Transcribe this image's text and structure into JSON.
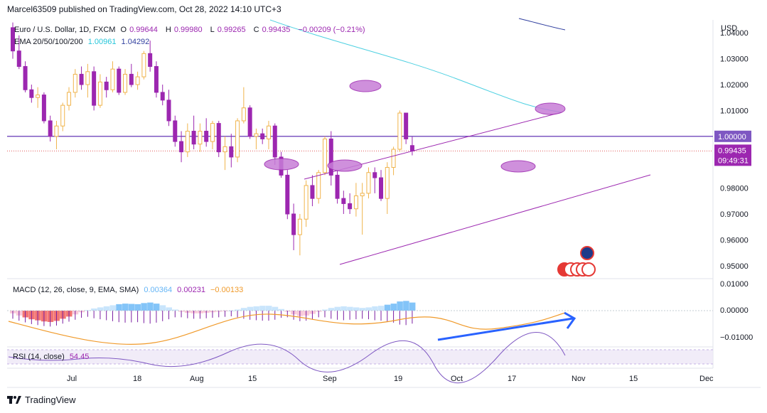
{
  "header": {
    "publisher": "Marcel63509 published on TradingView.com, Oct 28, 2022 14:10 UTC+3"
  },
  "legend": {
    "symbol": "Euro / U.S. Dollar, 1D, FXCM",
    "o_label": "O",
    "o_value": "0.99644",
    "h_label": "H",
    "h_value": "0.99980",
    "l_label": "L",
    "l_value": "0.99265",
    "c_label": "C",
    "c_value": "0.99435",
    "change": "−0.00209 (−0.21%)",
    "ema_label": "EMA 20/50/100/200",
    "ema_value_1": "1.00961",
    "ema_value_2": "1.04292"
  },
  "macd_legend": {
    "label": "MACD (12, 26, close, 9, EMA, SMA)",
    "v1": "0.00364",
    "v2": "0.00231",
    "v3": "−0.00133"
  },
  "rsi_legend": {
    "label": "RSI (14, close)",
    "value": "54.45"
  },
  "price_axis": {
    "currency": "USD",
    "ticks": [
      "1.04000",
      "1.03000",
      "1.02000",
      "1.01000",
      "1.00000",
      "0.99435",
      "0.98000",
      "0.97000",
      "0.96000",
      "0.95000"
    ],
    "countdown": "09:49:31",
    "macd_ticks": [
      "0.01000",
      "0.00000",
      "−0.01000"
    ]
  },
  "time_axis": {
    "labels": [
      "Jul",
      "18",
      "Aug",
      "15",
      "Sep",
      "19",
      "Oct",
      "17",
      "Nov",
      "15",
      "Dec"
    ]
  },
  "footer": {
    "brand": "TradingView"
  },
  "colors": {
    "up": "#f0b44c",
    "down": "#9c27b0",
    "ema_cyan": "#4dd0e1",
    "ema_navy": "#303f9f",
    "level": "#7e57c2",
    "ellipse": "#c77dd7",
    "blue_arrow": "#2962ff"
  },
  "chart_data": {
    "type": "candlestick",
    "symbol": "EURUSD",
    "timeframe": "1D",
    "ylim": [
      0.945,
      1.045
    ],
    "level_line": 1.0,
    "last_close": 0.99435,
    "x_labels": [
      "Jul",
      "18",
      "Aug",
      "15",
      "Sep",
      "19",
      "Oct",
      "17",
      "Nov",
      "15",
      "Dec"
    ],
    "ohlc": [
      [
        1.042,
        1.044,
        1.03,
        1.033
      ],
      [
        1.033,
        1.039,
        1.026,
        1.027
      ],
      [
        1.027,
        1.029,
        1.017,
        1.018
      ],
      [
        1.018,
        1.02,
        1.013,
        1.015
      ],
      [
        1.015,
        1.019,
        1.011,
        1.016
      ],
      [
        1.016,
        1.017,
        1.005,
        1.006
      ],
      [
        1.006,
        1.008,
        0.998,
        1.0
      ],
      [
        1.0,
        1.006,
        0.995,
        1.004
      ],
      [
        1.004,
        1.013,
        1.002,
        1.012
      ],
      [
        1.012,
        1.019,
        1.01,
        1.017
      ],
      [
        1.017,
        1.026,
        1.015,
        1.024
      ],
      [
        1.024,
        1.027,
        1.018,
        1.02
      ],
      [
        1.02,
        1.028,
        1.015,
        1.025
      ],
      [
        1.025,
        1.027,
        1.01,
        1.012
      ],
      [
        1.012,
        1.024,
        1.011,
        1.021
      ],
      [
        1.021,
        1.023,
        1.015,
        1.018
      ],
      [
        1.018,
        1.029,
        1.017,
        1.026
      ],
      [
        1.026,
        1.027,
        1.016,
        1.017
      ],
      [
        1.017,
        1.026,
        1.016,
        1.024
      ],
      [
        1.024,
        1.028,
        1.019,
        1.02
      ],
      [
        1.02,
        1.025,
        1.018,
        1.023
      ],
      [
        1.023,
        1.033,
        1.022,
        1.032
      ],
      [
        1.032,
        1.037,
        1.025,
        1.027
      ],
      [
        1.027,
        1.029,
        1.015,
        1.017
      ],
      [
        1.017,
        1.02,
        1.012,
        1.014
      ],
      [
        1.014,
        1.018,
        1.004,
        1.006
      ],
      [
        1.006,
        1.008,
        0.996,
        0.998
      ],
      [
        0.998,
        1.002,
        0.99,
        0.994
      ],
      [
        0.994,
        1.005,
        0.992,
        1.002
      ],
      [
        1.002,
        1.008,
        0.995,
        0.997
      ],
      [
        0.997,
        1.005,
        0.994,
        1.002
      ],
      [
        1.002,
        1.007,
        0.996,
        0.998
      ],
      [
        0.998,
        1.006,
        0.995,
        1.005
      ],
      [
        1.005,
        1.006,
        0.992,
        0.994
      ],
      [
        0.994,
        1.0,
        0.987,
        0.996
      ],
      [
        0.996,
        1.001,
        0.988,
        0.992
      ],
      [
        0.992,
        1.007,
        0.99,
        1.006
      ],
      [
        1.006,
        1.019,
        1.005,
        1.011
      ],
      [
        1.011,
        1.012,
        0.999,
        1.0
      ],
      [
        1.0,
        1.003,
        0.995,
        1.001
      ],
      [
        1.001,
        1.003,
        0.997,
        0.999
      ],
      [
        0.999,
        1.006,
        0.995,
        1.004
      ],
      [
        1.004,
        1.005,
        0.989,
        0.992
      ],
      [
        0.992,
        0.994,
        0.984,
        0.985
      ],
      [
        0.985,
        0.987,
        0.968,
        0.97
      ],
      [
        0.97,
        0.974,
        0.956,
        0.962
      ],
      [
        0.962,
        0.97,
        0.954,
        0.968
      ],
      [
        0.968,
        0.983,
        0.965,
        0.981
      ],
      [
        0.981,
        0.985,
        0.973,
        0.976
      ],
      [
        0.976,
        0.987,
        0.974,
        0.986
      ],
      [
        0.986,
        1.0,
        0.985,
        0.999
      ],
      [
        0.999,
        1.002,
        0.981,
        0.985
      ],
      [
        0.985,
        0.987,
        0.974,
        0.976
      ],
      [
        0.976,
        0.979,
        0.97,
        0.974
      ],
      [
        0.974,
        0.978,
        0.97,
        0.972
      ],
      [
        0.972,
        0.982,
        0.969,
        0.977
      ],
      [
        0.977,
        0.982,
        0.962,
        0.978
      ],
      [
        0.978,
        0.988,
        0.976,
        0.986
      ],
      [
        0.986,
        0.988,
        0.978,
        0.984
      ],
      [
        0.984,
        0.987,
        0.975,
        0.976
      ],
      [
        0.976,
        0.99,
        0.97,
        0.988
      ],
      [
        0.988,
        0.996,
        0.985,
        0.995
      ],
      [
        0.995,
        1.01,
        0.994,
        1.009
      ],
      [
        1.009,
        1.009,
        0.997,
        0.999
      ],
      [
        0.99644,
        0.9998,
        0.99265,
        0.99435
      ]
    ],
    "macd_hist": [
      -0.001,
      -0.0018,
      -0.0025,
      -0.0032,
      -0.0036,
      -0.004,
      -0.0042,
      -0.0038,
      -0.003,
      -0.0022,
      -0.0014,
      -0.0006,
      0.0002,
      0.0008,
      0.0012,
      0.0016,
      0.002,
      0.0024,
      0.0026,
      0.0025,
      0.0024,
      0.0028,
      0.003,
      0.0026,
      0.002,
      0.0012,
      0.0004,
      -0.0004,
      -0.0008,
      -0.001,
      -0.001,
      -0.0008,
      -0.0006,
      -0.0004,
      -0.0002,
      0.0,
      0.0004,
      0.001,
      0.0014,
      0.0016,
      0.0018,
      0.0018,
      0.0014,
      0.0006,
      -0.0004,
      -0.0014,
      -0.002,
      -0.0018,
      -0.0012,
      -0.0004,
      0.0004,
      0.001,
      0.0014,
      0.0016,
      0.0014,
      0.0012,
      0.001,
      0.0012,
      0.0016,
      0.0018,
      0.0022,
      0.0026,
      0.0034,
      0.0036,
      0.003
    ],
    "rsi": [
      54.45
    ]
  }
}
